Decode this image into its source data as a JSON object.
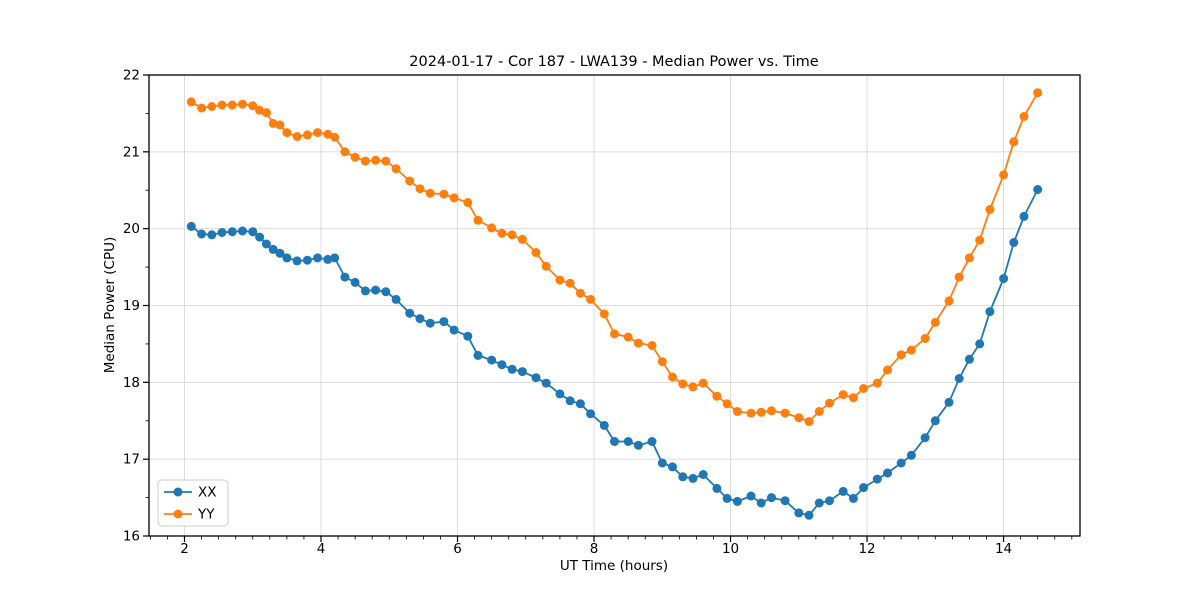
{
  "chart_data": {
    "type": "line",
    "title": "2024-01-17 - Cor 187 - LWA139 - Median Power vs. Time",
    "xlabel": "UT Time (hours)",
    "ylabel": "Median Power (CPU)",
    "xlim": [
      1.48,
      15.12
    ],
    "ylim": [
      16,
      22
    ],
    "x_major_ticks": [
      2,
      4,
      6,
      8,
      10,
      12,
      14
    ],
    "y_major_ticks": [
      16,
      17,
      18,
      19,
      20,
      21,
      22
    ],
    "x_minor_step": 0.25,
    "y_minor_step": 0.5,
    "grid": true,
    "grid_color": "#dcdcdc",
    "spine_color": "#000000",
    "background": "#ffffff",
    "legend_position": "lower left",
    "marker": "o",
    "x": [
      2.1,
      2.25,
      2.4,
      2.55,
      2.7,
      2.85,
      3.0,
      3.1,
      3.2,
      3.3,
      3.4,
      3.5,
      3.65,
      3.8,
      3.95,
      4.1,
      4.2,
      4.35,
      4.5,
      4.65,
      4.8,
      4.95,
      5.1,
      5.3,
      5.45,
      5.6,
      5.8,
      5.95,
      6.15,
      6.3,
      6.5,
      6.65,
      6.8,
      6.95,
      7.15,
      7.3,
      7.5,
      7.65,
      7.8,
      7.95,
      8.15,
      8.3,
      8.5,
      8.65,
      8.85,
      9.0,
      9.15,
      9.3,
      9.45,
      9.6,
      9.8,
      9.95,
      10.1,
      10.3,
      10.45,
      10.6,
      10.8,
      11.0,
      11.15,
      11.3,
      11.45,
      11.65,
      11.8,
      11.95,
      12.15,
      12.3,
      12.5,
      12.65,
      12.85,
      13.0,
      13.2,
      13.35,
      13.5,
      13.65,
      13.8,
      14.0,
      14.15,
      14.3,
      14.5
    ],
    "series": [
      {
        "name": "XX",
        "color": "#1f77b4",
        "values": [
          20.03,
          19.93,
          19.92,
          19.95,
          19.96,
          19.97,
          19.96,
          19.89,
          19.8,
          19.73,
          19.68,
          19.62,
          19.58,
          19.59,
          19.62,
          19.6,
          19.62,
          19.37,
          19.3,
          19.19,
          19.2,
          19.18,
          19.08,
          18.9,
          18.83,
          18.77,
          18.79,
          18.68,
          18.6,
          18.35,
          18.29,
          18.23,
          18.17,
          18.14,
          18.06,
          17.99,
          17.85,
          17.76,
          17.72,
          17.59,
          17.44,
          17.23,
          17.23,
          17.18,
          17.23,
          16.95,
          16.9,
          16.77,
          16.75,
          16.8,
          16.62,
          16.49,
          16.45,
          16.52,
          16.43,
          16.5,
          16.46,
          16.3,
          16.27,
          16.43,
          16.46,
          16.58,
          16.49,
          16.63,
          16.74,
          16.82,
          16.95,
          17.05,
          17.28,
          17.5,
          17.74,
          18.05,
          18.3,
          18.5,
          18.92,
          19.35,
          19.82,
          20.16,
          20.51
        ]
      },
      {
        "name": "YY",
        "color": "#ff7f0e",
        "values": [
          21.65,
          21.57,
          21.59,
          21.61,
          21.61,
          21.62,
          21.6,
          21.54,
          21.51,
          21.37,
          21.35,
          21.25,
          21.2,
          21.22,
          21.25,
          21.23,
          21.19,
          21.0,
          20.93,
          20.88,
          20.89,
          20.88,
          20.78,
          20.62,
          20.52,
          20.46,
          20.45,
          20.4,
          20.34,
          20.11,
          20.01,
          19.94,
          19.92,
          19.86,
          19.69,
          19.51,
          19.33,
          19.29,
          19.16,
          19.08,
          18.89,
          18.63,
          18.59,
          18.51,
          18.48,
          18.27,
          18.07,
          17.98,
          17.94,
          17.99,
          17.82,
          17.72,
          17.62,
          17.6,
          17.61,
          17.63,
          17.6,
          17.54,
          17.49,
          17.62,
          17.73,
          17.84,
          17.8,
          17.92,
          17.99,
          18.16,
          18.36,
          18.42,
          18.57,
          18.78,
          19.06,
          19.37,
          19.62,
          19.85,
          20.25,
          20.7,
          21.13,
          21.46,
          21.77
        ]
      }
    ]
  }
}
